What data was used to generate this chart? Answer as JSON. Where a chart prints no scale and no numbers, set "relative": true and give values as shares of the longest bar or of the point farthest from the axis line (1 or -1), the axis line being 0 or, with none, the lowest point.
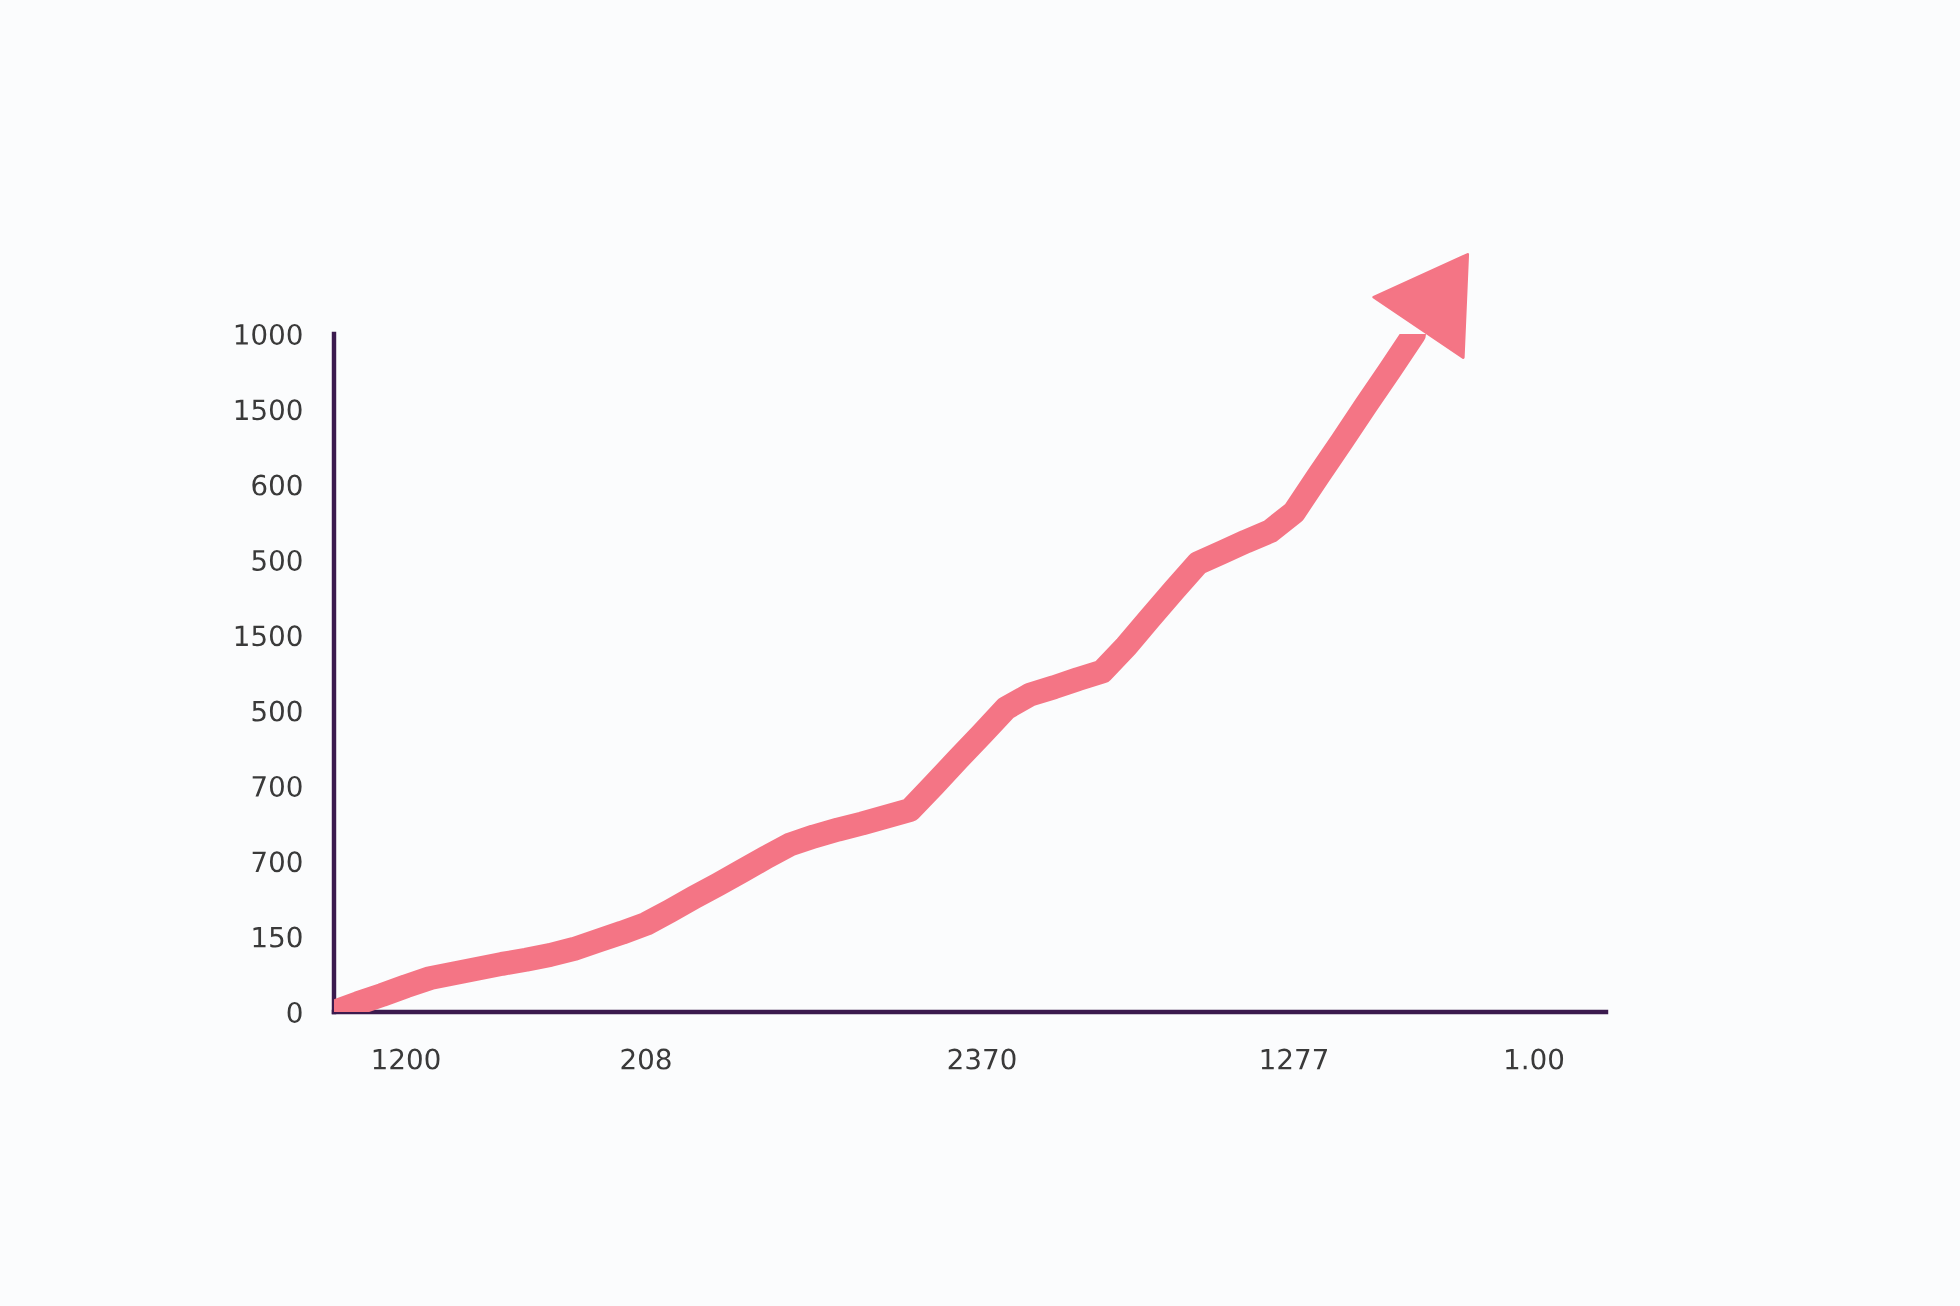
{
  "chart_data": {
    "type": "line",
    "relative": true,
    "categories": [
      null,
      null,
      null,
      "1200",
      null,
      null,
      null,
      null,
      null,
      null,
      null,
      null,
      null,
      "208",
      null,
      null,
      null,
      null,
      null,
      null,
      null,
      null,
      null,
      null,
      null,
      null,
      null,
      "2370",
      null,
      null,
      null,
      null,
      null,
      null,
      null,
      null,
      null,
      null,
      null,
      null,
      "1277",
      null,
      null,
      null,
      null,
      null,
      null,
      null,
      null,
      null,
      "1.00",
      null,
      null,
      null
    ],
    "series": [
      {
        "color": "#f47585",
        "values": [
          0,
          0.013,
          0.025,
          0.038,
          0.05,
          0.057,
          0.064,
          0.071,
          0.077,
          0.084,
          0.093,
          0.105,
          0.117,
          0.13,
          0.149,
          0.169,
          0.188,
          0.208,
          0.228,
          0.247,
          0.259,
          0.269,
          0.278,
          0.288,
          0.298,
          0.335,
          0.373,
          0.41,
          0.448,
          0.468,
          0.479,
          0.491,
          0.502,
          0.539,
          0.581,
          0.622,
          0.662,
          0.678,
          0.694,
          0.709,
          0.737,
          0.79,
          0.842,
          0.895,
          0.947,
          1,
          null,
          null,
          null,
          null,
          null,
          null,
          null,
          null
        ]
      }
    ],
    "annotations": [
      "1000",
      "1500",
      "600",
      "500",
      "1500",
      "500",
      "700",
      "700",
      "150",
      "0"
    ],
    "marker": "none",
    "line_style": "solid"
  }
}
